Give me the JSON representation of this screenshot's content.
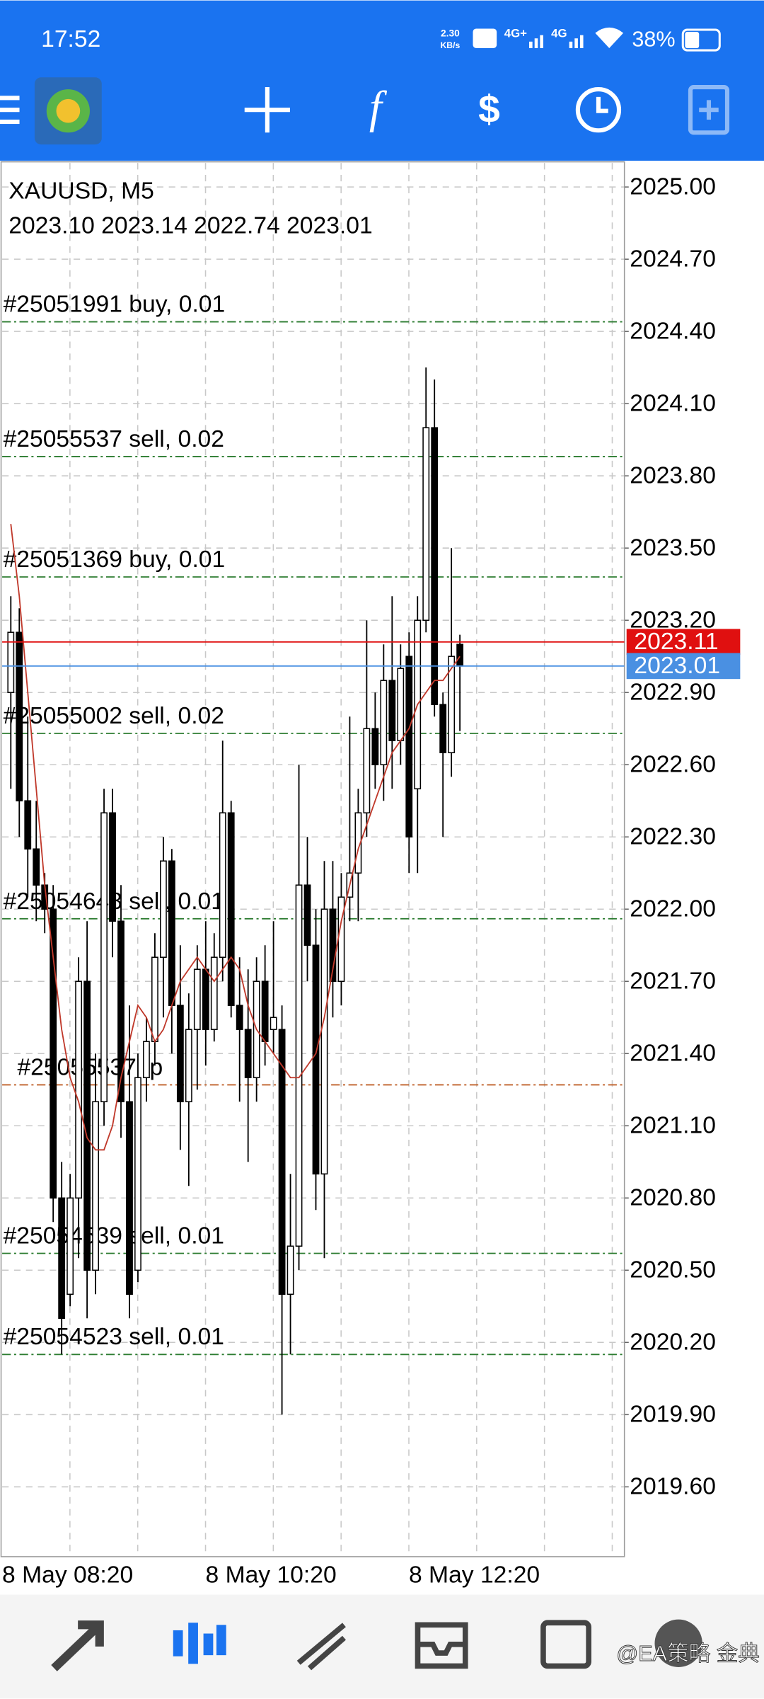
{
  "status_bar": {
    "time": "17:52",
    "speed": "2.30",
    "speed_unit": "KB/s",
    "network_1": "4G+",
    "network_2": "4G",
    "battery": "38%"
  },
  "chart_data": {
    "type": "candlestick",
    "title": "XAUUSD, M5",
    "subtitle": "2023.10 2023.14 2022.74 2023.01",
    "categories": [
      "8 May 08:20",
      null,
      null,
      null,
      null,
      null,
      null,
      null,
      null,
      null,
      null,
      null,
      null,
      null,
      null,
      null,
      null,
      null,
      null,
      null,
      null,
      null,
      null,
      null,
      "8 May 10:20",
      null,
      null,
      null,
      null,
      null,
      null,
      null,
      null,
      null,
      null,
      null,
      null,
      null,
      null,
      null,
      null,
      null,
      null,
      null,
      null,
      null,
      null,
      null,
      "8 May 12:20",
      null,
      null,
      null,
      null,
      null
    ],
    "open": [
      2022.9,
      2023.15,
      2022.45,
      2022.25,
      2022.1,
      2022.0,
      2020.8,
      2020.4,
      2020.8,
      2021.7,
      2020.5,
      2021.2,
      2022.4,
      2021.95,
      2021.2,
      2020.5,
      2021.3,
      2021.45,
      2021.8,
      2022.2,
      2021.6,
      2021.2,
      2021.5,
      2021.75,
      2021.5,
      2021.8,
      2022.4,
      2021.6,
      2021.5,
      2021.3,
      2021.7,
      2021.5,
      2021.5,
      2020.4,
      2020.6,
      2022.1,
      2021.85,
      2020.9,
      2022.0,
      2021.7,
      2022.05,
      2022.15,
      2022.4,
      2022.75,
      2022.6,
      2022.95,
      2022.7,
      2023.05,
      2022.5,
      2023.2,
      2024.0,
      2022.85,
      2022.65,
      2023.1
    ],
    "high": [
      2023.3,
      2023.25,
      2022.8,
      2022.45,
      2022.15,
      2022.1,
      2020.95,
      2020.9,
      2021.8,
      2021.95,
      2021.4,
      2022.5,
      2022.5,
      2022.1,
      2021.6,
      2021.4,
      2021.55,
      2021.9,
      2022.3,
      2022.25,
      2021.85,
      2021.65,
      2021.85,
      2021.95,
      2021.9,
      2022.7,
      2022.45,
      2021.8,
      2021.75,
      2021.8,
      2021.85,
      2021.95,
      2021.6,
      2020.9,
      2022.6,
      2022.3,
      2022.0,
      2022.2,
      2022.2,
      2022.15,
      2022.8,
      2022.5,
      2023.2,
      2022.9,
      2023.1,
      2023.3,
      2023.1,
      2023.15,
      2023.3,
      2024.25,
      2024.2,
      2022.9,
      2023.5,
      2023.14
    ],
    "low": [
      2022.5,
      2022.3,
      2022.05,
      2021.95,
      2021.9,
      2020.7,
      2020.15,
      2020.35,
      2020.55,
      2020.3,
      2020.4,
      2021.1,
      2021.8,
      2021.05,
      2020.3,
      2020.45,
      2021.2,
      2021.35,
      2021.55,
      2021.4,
      2021.0,
      2020.85,
      2021.25,
      2021.35,
      2021.45,
      2021.7,
      2021.55,
      2021.2,
      2020.95,
      2021.2,
      2021.35,
      2021.4,
      2019.9,
      2020.15,
      2020.5,
      2021.7,
      2020.75,
      2020.55,
      2021.55,
      2021.6,
      2021.95,
      2021.95,
      2022.3,
      2022.5,
      2022.45,
      2022.5,
      2022.6,
      2022.15,
      2022.15,
      2023.15,
      2022.8,
      2022.3,
      2022.55,
      2022.74
    ],
    "close": [
      2023.15,
      2022.45,
      2022.25,
      2022.1,
      2022.0,
      2020.8,
      2020.3,
      2020.8,
      2021.7,
      2020.5,
      2021.2,
      2022.4,
      2021.95,
      2021.2,
      2020.4,
      2021.3,
      2021.45,
      2021.8,
      2022.2,
      2021.6,
      2021.2,
      2021.5,
      2021.75,
      2021.5,
      2021.8,
      2022.4,
      2021.6,
      2021.5,
      2021.3,
      2021.7,
      2021.45,
      2021.55,
      2020.4,
      2020.6,
      2022.1,
      2021.85,
      2020.9,
      2022.0,
      2021.7,
      2022.05,
      2022.15,
      2022.4,
      2022.75,
      2022.6,
      2022.95,
      2022.7,
      2023.0,
      2022.3,
      2023.2,
      2024.0,
      2022.85,
      2022.65,
      2023.05,
      2023.01
    ],
    "up_color": "#ffffff",
    "down_color": "#000000",
    "ma": {
      "color": "#c0392b",
      "values": [
        2023.6,
        2023.3,
        2022.9,
        2022.5,
        2022.1,
        2021.8,
        2021.5,
        2021.3,
        2021.2,
        2021.05,
        2021.0,
        2021.0,
        2021.1,
        2021.3,
        2021.45,
        2021.6,
        2021.55,
        2021.45,
        2021.5,
        2021.6,
        2021.7,
        2021.75,
        2021.8,
        2021.75,
        2021.7,
        2021.75,
        2021.8,
        2021.75,
        2021.6,
        2021.5,
        2021.45,
        2021.4,
        2021.35,
        2021.3,
        2021.3,
        2021.35,
        2021.4,
        2021.55,
        2021.75,
        2021.95,
        2022.1,
        2022.25,
        2022.35,
        2022.45,
        2022.55,
        2022.65,
        2022.7,
        2022.75,
        2022.85,
        2022.9,
        2022.95,
        2022.95,
        2023.0,
        2023.05
      ]
    },
    "orders": [
      {
        "label": "#25051991 buy, 0.01",
        "value": 2024.44,
        "color": "#2e7d32"
      },
      {
        "label": "#25055537 sell, 0.02",
        "value": 2023.88,
        "color": "#2e7d32"
      },
      {
        "label": "#25051369 buy, 0.01",
        "value": 2023.38,
        "color": "#2e7d32"
      },
      {
        "label": "#25055002 sell, 0.02",
        "value": 2022.73,
        "color": "#2e7d32"
      },
      {
        "label": "#25054648 sell, 0.01",
        "value": 2021.96,
        "color": "#2e7d32"
      },
      {
        "label": "#25055537 tp",
        "value": 2021.27,
        "color": "#c0622b"
      },
      {
        "label": "#25054539 sell, 0.01",
        "value": 2020.57,
        "color": "#2e7d32"
      },
      {
        "label": "#25054523 sell, 0.01",
        "value": 2020.15,
        "color": "#2e7d32"
      }
    ],
    "ask": {
      "value": 2023.11,
      "label": "2023.11",
      "color": "#e01010"
    },
    "bid": {
      "value": 2023.01,
      "label": "2023.01",
      "color": "#4a90e2"
    },
    "ylim": [
      2019.31,
      2025.1
    ],
    "yticks": [
      {
        "value": 2025.0,
        "label": "2025.00"
      },
      {
        "value": 2024.7,
        "label": "2024.70"
      },
      {
        "value": 2024.4,
        "label": "2024.40"
      },
      {
        "value": 2024.1,
        "label": "2024.10"
      },
      {
        "value": 2023.8,
        "label": "2023.80"
      },
      {
        "value": 2023.5,
        "label": "2023.50"
      },
      {
        "value": 2023.2,
        "label": "2023.20"
      },
      {
        "value": 2022.9,
        "label": "2022.90"
      },
      {
        "value": 2022.6,
        "label": "2022.60"
      },
      {
        "value": 2022.3,
        "label": "2022.30"
      },
      {
        "value": 2022.0,
        "label": "2022.00"
      },
      {
        "value": 2021.7,
        "label": "2021.70"
      },
      {
        "value": 2021.4,
        "label": "2021.40"
      },
      {
        "value": 2021.1,
        "label": "2021.10"
      },
      {
        "value": 2020.8,
        "label": "2020.80"
      },
      {
        "value": 2020.5,
        "label": "2020.50"
      },
      {
        "value": 2020.2,
        "label": "2020.20"
      },
      {
        "value": 2019.9,
        "label": "2019.90"
      },
      {
        "value": 2019.6,
        "label": "2019.60"
      }
    ],
    "grid": true
  },
  "watermark": "@EA策略 金典"
}
